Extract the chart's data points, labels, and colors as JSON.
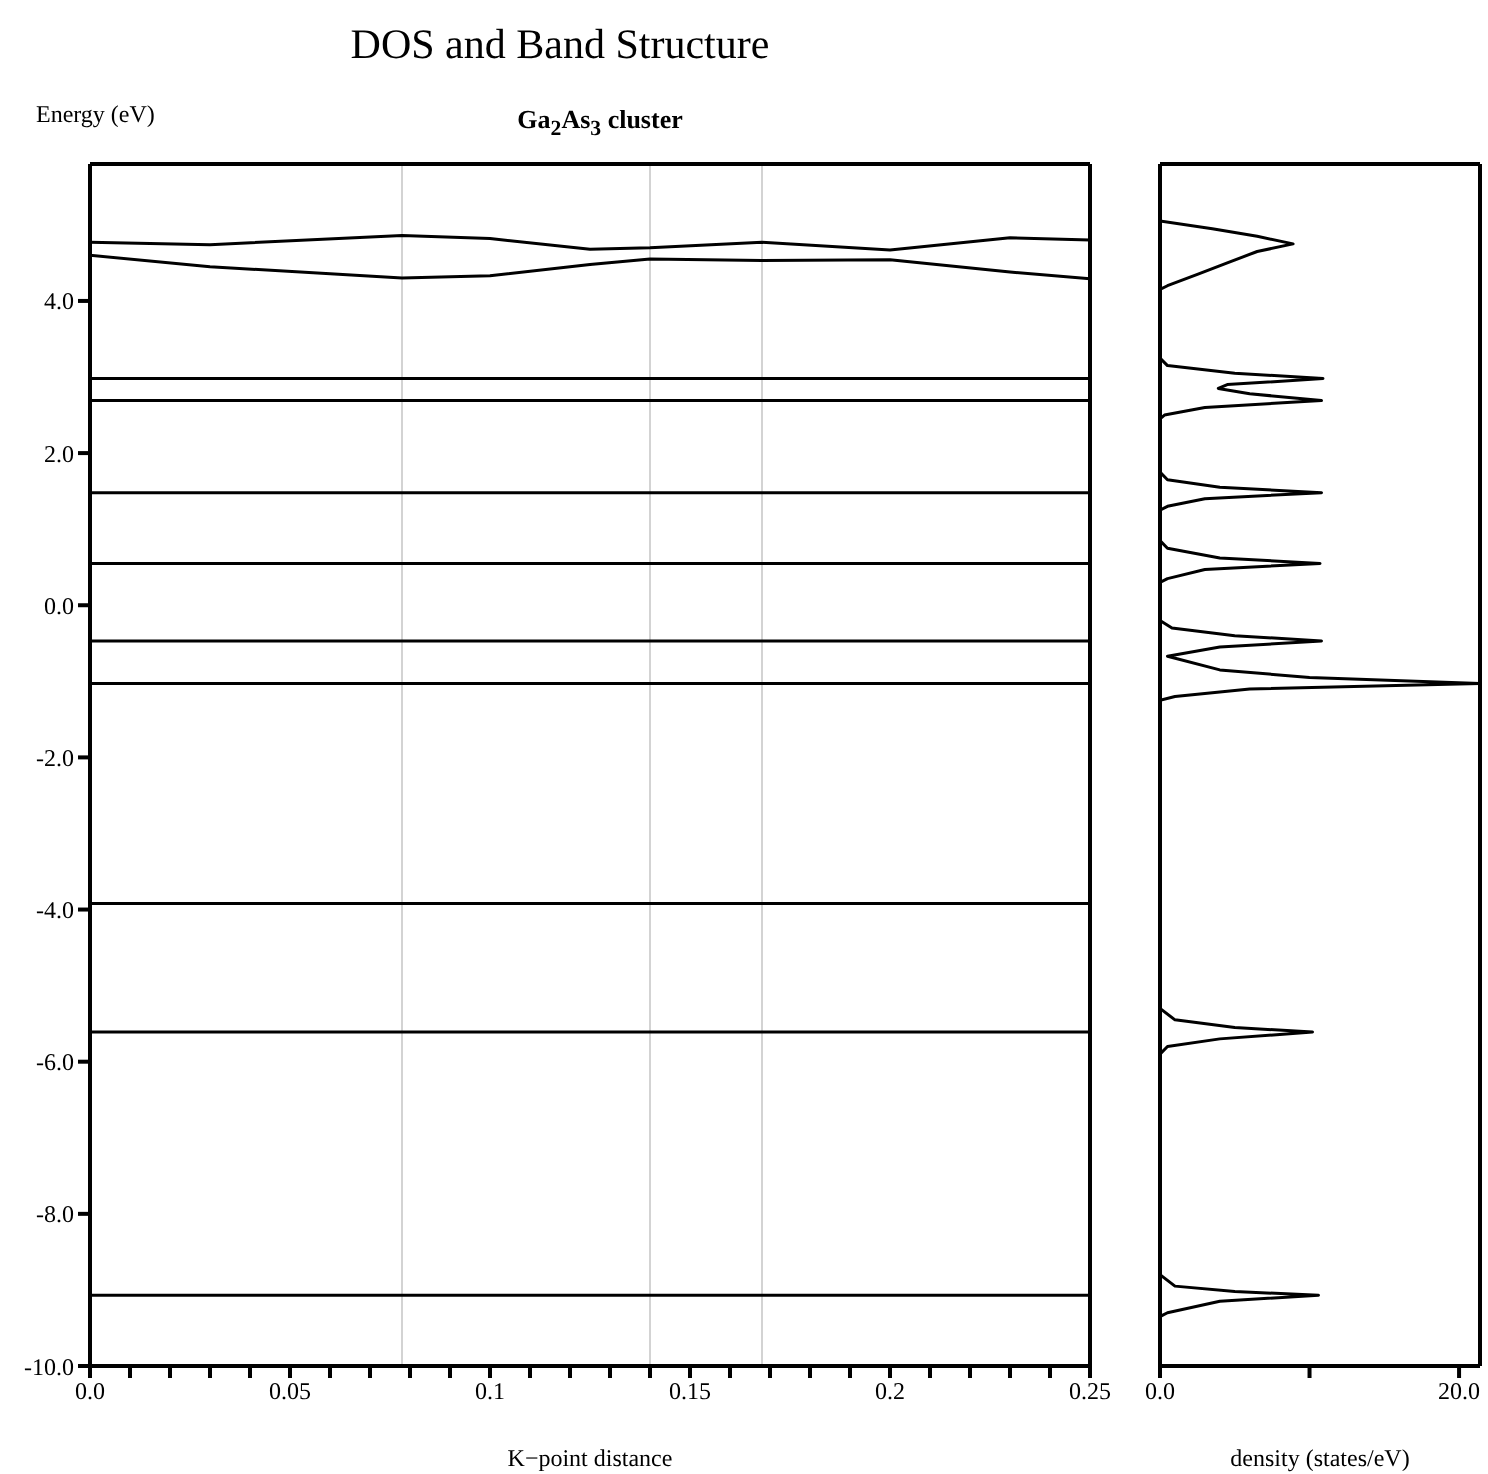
{
  "chart_data": [
    {
      "type": "line",
      "title": "DOS and Band Structure",
      "subtitle": "Ga$_{2}$As$_{3}$ cluster",
      "xlabel": "K−point distance",
      "ylabel": "Energy (eV)",
      "marker": "none",
      "line_style": "solid",
      "xlim": [
        0,
        0.25
      ],
      "ylim": [
        -10,
        5.8
      ],
      "xticks": [
        {
          "value": 0,
          "label": "0.0"
        },
        {
          "value": 0.01,
          "label": null
        },
        {
          "value": 0.02,
          "label": null
        },
        {
          "value": 0.03,
          "label": null
        },
        {
          "value": 0.04,
          "label": null
        },
        0.05,
        {
          "value": 0.06,
          "label": null
        },
        {
          "value": 0.07,
          "label": null
        },
        {
          "value": 0.08,
          "label": null
        },
        {
          "value": 0.09,
          "label": null
        },
        0.1,
        {
          "value": 0.11,
          "label": null
        },
        {
          "value": 0.12,
          "label": null
        },
        {
          "value": 0.13,
          "label": null
        },
        {
          "value": 0.14,
          "label": null
        },
        0.15,
        {
          "value": 0.16,
          "label": null
        },
        {
          "value": 0.17,
          "label": null
        },
        {
          "value": 0.18,
          "label": null
        },
        {
          "value": 0.19,
          "label": null
        },
        0.2,
        {
          "value": 0.21,
          "label": null
        },
        {
          "value": 0.22,
          "label": null
        },
        {
          "value": 0.23,
          "label": null
        },
        {
          "value": 0.24,
          "label": null
        },
        0.25
      ],
      "yticks": [
        {
          "value": -10,
          "label": "-10.0"
        },
        {
          "value": -8,
          "label": "-8.0"
        },
        {
          "value": -6,
          "label": "-6.0"
        },
        {
          "value": -4,
          "label": "-4.0"
        },
        {
          "value": -2,
          "label": "-2.0"
        },
        {
          "value": 0,
          "label": "0.0"
        },
        {
          "value": 2,
          "label": "2.0"
        },
        {
          "value": 4,
          "label": "4.0"
        }
      ],
      "ref_lines": [
        {
          "axis": "x",
          "value": 0.078,
          "color": "#d3d3d3"
        },
        {
          "axis": "x",
          "value": 0.14,
          "color": "#d3d3d3"
        },
        {
          "axis": "x",
          "value": 0.168,
          "color": "#d3d3d3"
        }
      ],
      "series": [
        {
          "color": "#000000",
          "x": [
            0,
            0.03,
            0.078,
            0.1,
            0.125,
            0.14,
            0.168,
            0.2,
            0.23,
            0.25
          ],
          "values": [
            4.77,
            4.74,
            4.86,
            4.82,
            4.68,
            4.7,
            4.77,
            4.67,
            4.83,
            4.8
          ]
        },
        {
          "color": "#000000",
          "x": [
            0,
            0.03,
            0.078,
            0.1,
            0.125,
            0.14,
            0.168,
            0.2,
            0.23,
            0.25
          ],
          "values": [
            4.6,
            4.45,
            4.3,
            4.33,
            4.48,
            4.55,
            4.53,
            4.54,
            4.38,
            4.29
          ]
        },
        {
          "color": "#000000",
          "x": [
            0,
            0.25
          ],
          "values": [
            2.98,
            2.98
          ]
        },
        {
          "color": "#000000",
          "x": [
            0,
            0.25
          ],
          "values": [
            2.69,
            2.69
          ]
        },
        {
          "color": "#000000",
          "x": [
            0,
            0.25
          ],
          "values": [
            1.48,
            1.48
          ]
        },
        {
          "color": "#000000",
          "x": [
            0,
            0.25
          ],
          "values": [
            0.55,
            0.55
          ]
        },
        {
          "color": "#000000",
          "x": [
            0,
            0.25
          ],
          "values": [
            -0.47,
            -0.47
          ]
        },
        {
          "color": "#000000",
          "x": [
            0,
            0.25
          ],
          "values": [
            -1.03,
            -1.03
          ]
        },
        {
          "color": "#000000",
          "x": [
            0,
            0.25
          ],
          "values": [
            -3.92,
            -3.92
          ]
        },
        {
          "color": "#000000",
          "x": [
            0,
            0.25
          ],
          "values": [
            -5.61,
            -5.61
          ]
        },
        {
          "color": "#000000",
          "x": [
            0,
            0.25
          ],
          "values": [
            -9.07,
            -9.07
          ]
        }
      ]
    },
    {
      "type": "line",
      "orientation": "horizontal",
      "xlabel": "density (states/eV)",
      "marker": "none",
      "line_style": "solid",
      "tick_labels": "x",
      "xlim": [
        0,
        21.4
      ],
      "ylim": [
        -10,
        5.8
      ],
      "xticks": [
        {
          "value": 0,
          "label": "0.0"
        },
        {
          "value": 10,
          "label": null
        },
        {
          "value": 20,
          "label": "20.0"
        }
      ],
      "series": [
        {
          "color": "#000000",
          "x": [
            5.8,
            5.05,
            4.95,
            4.85,
            4.75,
            4.65,
            4.5,
            4.35,
            4.2,
            4.15,
            3.25,
            3.15,
            3.05,
            2.98,
            2.9,
            2.85,
            2.78,
            2.69,
            2.6,
            2.5,
            2.45,
            1.75,
            1.65,
            1.55,
            1.48,
            1.4,
            1.3,
            1.25,
            0.85,
            0.75,
            0.62,
            0.55,
            0.47,
            0.35,
            0.3,
            -0.2,
            -0.3,
            -0.4,
            -0.47,
            -0.55,
            -0.67,
            -0.85,
            -0.95,
            -1.03,
            -1.1,
            -1.2,
            -1.25,
            -5.3,
            -5.45,
            -5.55,
            -5.61,
            -5.7,
            -5.8,
            -5.9,
            -8.8,
            -8.95,
            -9.02,
            -9.07,
            -9.15,
            -9.3,
            -9.35,
            -10
          ],
          "values": [
            0,
            0,
            3.5,
            6.5,
            8.9,
            6.5,
            4.5,
            2.5,
            0.5,
            0,
            0,
            0.5,
            5,
            10.9,
            4.5,
            3.9,
            6,
            10.8,
            3,
            0.3,
            0,
            0,
            0.5,
            4,
            10.8,
            3,
            0.5,
            0,
            0,
            0.5,
            4,
            10.7,
            3,
            0.5,
            0,
            0,
            0.8,
            5,
            10.8,
            4,
            0.5,
            4,
            10,
            21.4,
            6,
            1,
            0,
            0,
            1,
            5,
            10.2,
            4,
            0.5,
            0,
            0,
            1,
            5,
            10.6,
            4,
            0.5,
            0,
            0
          ]
        }
      ]
    }
  ]
}
